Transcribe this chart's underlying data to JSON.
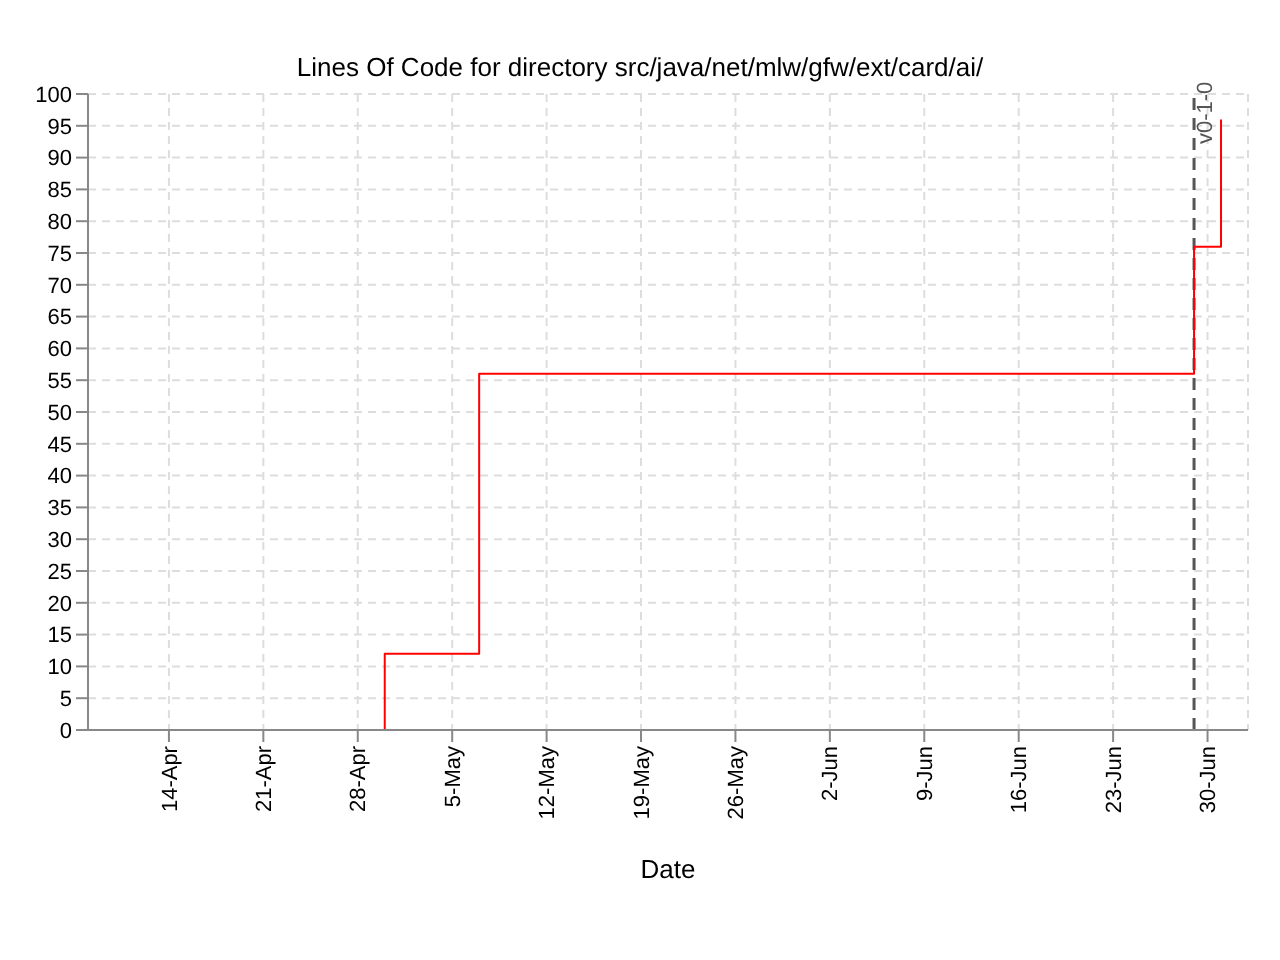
{
  "chart_data": {
    "type": "step",
    "subtitle": "Lines Of Code for directory src/java/net/mlw/gfw/ext/card/ai/",
    "xlabel": "Date",
    "series": [
      {
        "color": "#ff0000",
        "x": [
          "--04-30",
          "--04-30",
          "--05-07",
          "--06-29",
          "--07-01"
        ],
        "values": [
          0,
          12,
          56,
          76,
          96
        ]
      }
    ],
    "xlim": [
      "--04-08",
      "--07-03"
    ],
    "xticks": [
      {
        "value": "--04-14",
        "label": "14-Apr"
      },
      {
        "value": "--04-21",
        "label": "21-Apr"
      },
      {
        "value": "--04-28",
        "label": "28-Apr"
      },
      {
        "value": "--05-05",
        "label": "5-May"
      },
      {
        "value": "--05-12",
        "label": "12-May"
      },
      {
        "value": "--05-19",
        "label": "19-May"
      },
      {
        "value": "--05-26",
        "label": "26-May"
      },
      {
        "value": "--06-02",
        "label": "2-Jun"
      },
      {
        "value": "--06-09",
        "label": "9-Jun"
      },
      {
        "value": "--06-16",
        "label": "16-Jun"
      },
      {
        "value": "--06-23",
        "label": "23-Jun"
      },
      {
        "value": "--06-30",
        "label": "30-Jun"
      }
    ],
    "ylim": [
      0,
      100
    ],
    "yticks": [
      0,
      5,
      10,
      15,
      20,
      25,
      30,
      35,
      40,
      45,
      50,
      55,
      60,
      65,
      70,
      75,
      80,
      85,
      90,
      95,
      100
    ],
    "ref_lines": [
      {
        "axis": "x",
        "value": "--06-29",
        "label": "v0-1-0",
        "color": "#555555",
        "line_style": "dashed"
      }
    ],
    "grid": true,
    "legend": false,
    "marker": "none",
    "line_style": "solid"
  }
}
